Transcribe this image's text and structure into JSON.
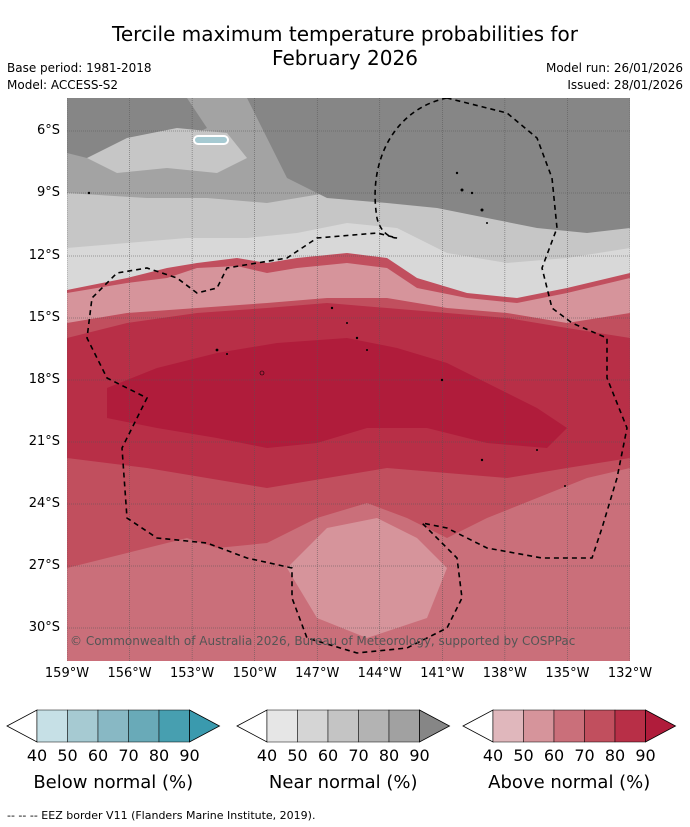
{
  "title": {
    "line1": "Tercile maximum temperature probabilities for",
    "line2": "February 2026"
  },
  "meta": {
    "base_period": "Base period: 1981-2018",
    "model": "Model: ACCESS-S2",
    "model_run": "Model run: 26/01/2026",
    "issued": "Issued: 28/01/2026"
  },
  "map": {
    "lat_labels": [
      "6°S",
      "9°S",
      "12°S",
      "15°S",
      "18°S",
      "21°S",
      "24°S",
      "27°S",
      "30°S"
    ],
    "lon_labels": [
      "159°W",
      "156°W",
      "153°W",
      "150°W",
      "147°W",
      "144°W",
      "141°W",
      "138°W",
      "135°W",
      "132°W"
    ],
    "copyright": "© Commonwealth of Australia 2026, Bureau of Meteorology, supported by COSPPac",
    "colors": {
      "near_high": "#868686",
      "near_mid": "#a3a3a3",
      "near_low": "#c6c6c6",
      "near_lowest": "#d8d8d8",
      "above_50": "#d6949b",
      "above_60": "#ca6f7a",
      "above_70": "#c14f5e",
      "above_80": "#b82f47",
      "above_90": "#b01c3b"
    }
  },
  "colorbars": [
    {
      "label": "Below normal (%)",
      "ticks": [
        "40",
        "50",
        "60",
        "70",
        "80",
        "90"
      ],
      "colors": [
        "#ffffff",
        "#c6e0e6",
        "#a6cad2",
        "#88b8c4",
        "#69aab8",
        "#479fb0",
        "#3a9aae"
      ]
    },
    {
      "label": "Near normal (%)",
      "ticks": [
        "40",
        "50",
        "60",
        "70",
        "80",
        "90"
      ],
      "colors": [
        "#ffffff",
        "#e6e6e6",
        "#d5d5d5",
        "#c4c4c4",
        "#b3b3b3",
        "#a1a1a1",
        "#868686"
      ]
    },
    {
      "label": "Above normal (%)",
      "ticks": [
        "40",
        "50",
        "60",
        "70",
        "80",
        "90"
      ],
      "colors": [
        "#ffffff",
        "#e0b7bc",
        "#d6949b",
        "#ca6f7a",
        "#c14f5e",
        "#b82f47",
        "#b01c3b"
      ]
    }
  ],
  "footnote": "-- -- -- EEZ border V11 (Flanders Marine Institute, 2019)."
}
